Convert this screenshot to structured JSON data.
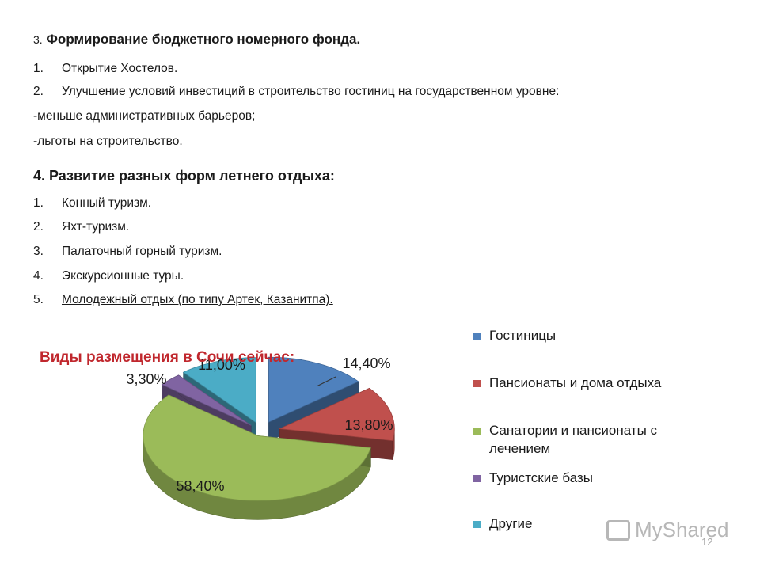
{
  "section3": {
    "number": "3.",
    "title": "Формирование бюджетного номерного фонда.",
    "items": [
      {
        "n": "1.",
        "text": "Открытие Хостелов."
      },
      {
        "n": "2.",
        "text": "Улучшение условий инвестиций в строительство гостиниц на государственном уровне:"
      }
    ],
    "sub_items": [
      "-меньше административных барьеров;",
      "-льготы на строительство."
    ]
  },
  "section4": {
    "title": "4. Развитие разных форм летнего отдыха:",
    "items": [
      {
        "n": "1.",
        "text": "Конный туризм."
      },
      {
        "n": "2.",
        "text": "Яхт-туризм."
      },
      {
        "n": "3.",
        "text": "Палаточный горный туризм."
      },
      {
        "n": "4.",
        "text": "Экскурсионные туры."
      },
      {
        "n": "5.",
        "text": "Молодежный отдых (по типу  Артек, Казанитпа)."
      }
    ]
  },
  "chart_data": {
    "type": "pie",
    "title": "Виды размещения в Сочи сейчас:",
    "three_d": true,
    "exploded": true,
    "legend_position": "right",
    "series": [
      {
        "name": "Гостиницы",
        "value": 14.4,
        "label": "14,40%",
        "color": "#4f81bd"
      },
      {
        "name": "Пансионаты и дома отдыха",
        "value": 13.8,
        "label": "13,80%",
        "color": "#c0504d"
      },
      {
        "name": "Санатории и пансионаты с лечением",
        "value": 58.4,
        "label": "58,40%",
        "color": "#9bbb59"
      },
      {
        "name": "Туристские базы",
        "value": 3.3,
        "label": "3,30%",
        "color": "#8064a2"
      },
      {
        "name": "Другие",
        "value": 11.0,
        "label": "11,00%",
        "color": "#4bacc6"
      }
    ]
  },
  "footer": {
    "watermark": "MyShared",
    "page_number": "12"
  }
}
